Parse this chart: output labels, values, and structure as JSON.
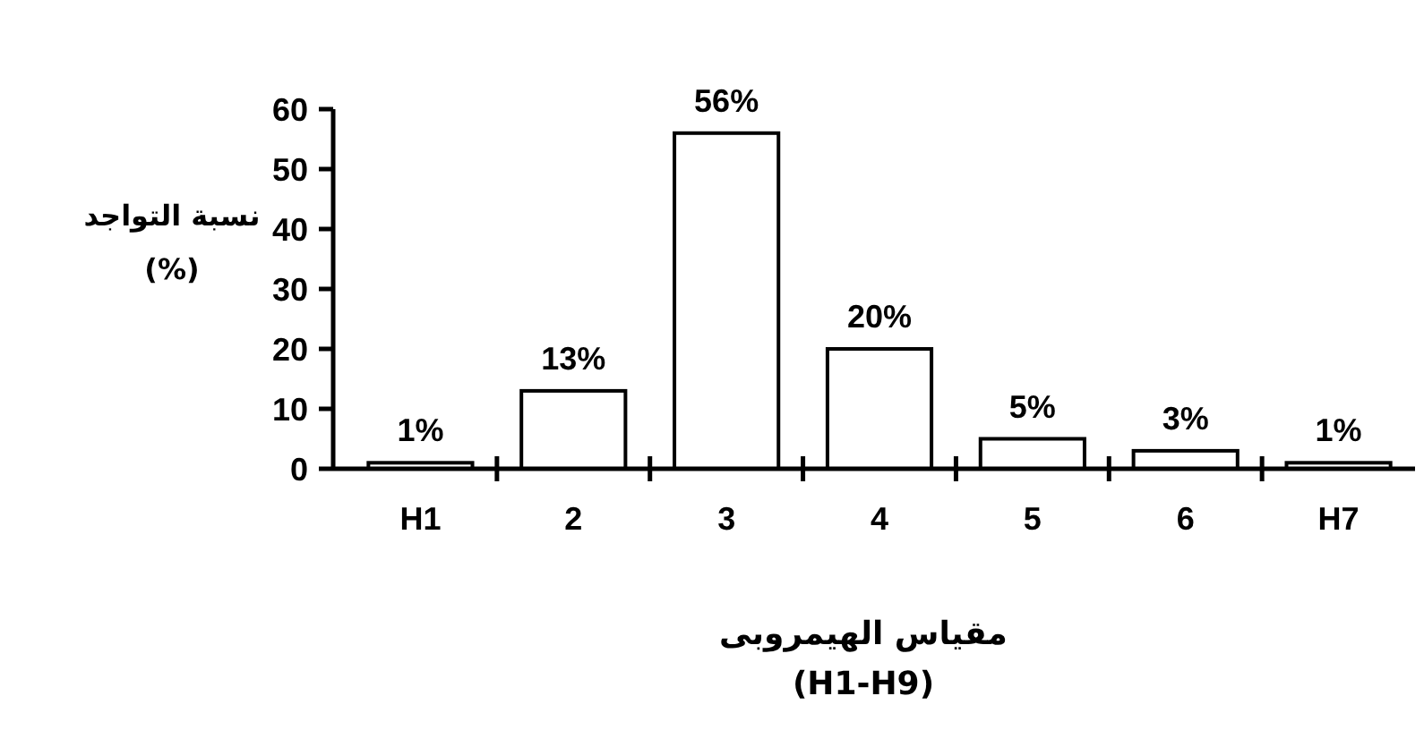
{
  "chart_data": {
    "type": "bar",
    "ylabel": "نسبة التواجد\n(%)",
    "xlabel": "مقياس الهيمروبى\n(H1-H9)",
    "categories": [
      "H1",
      "2",
      "3",
      "4",
      "5",
      "6",
      "H7"
    ],
    "values": [
      1,
      13,
      56,
      20,
      5,
      3,
      1
    ],
    "value_labels": [
      "1%",
      "13%",
      "56%",
      "20%",
      "5%",
      "3%",
      "1%"
    ],
    "color": "#ffffff",
    "ylim": [
      0,
      60
    ],
    "yticks": [
      0,
      10,
      20,
      30,
      40,
      50,
      60
    ],
    "grid": false
  }
}
